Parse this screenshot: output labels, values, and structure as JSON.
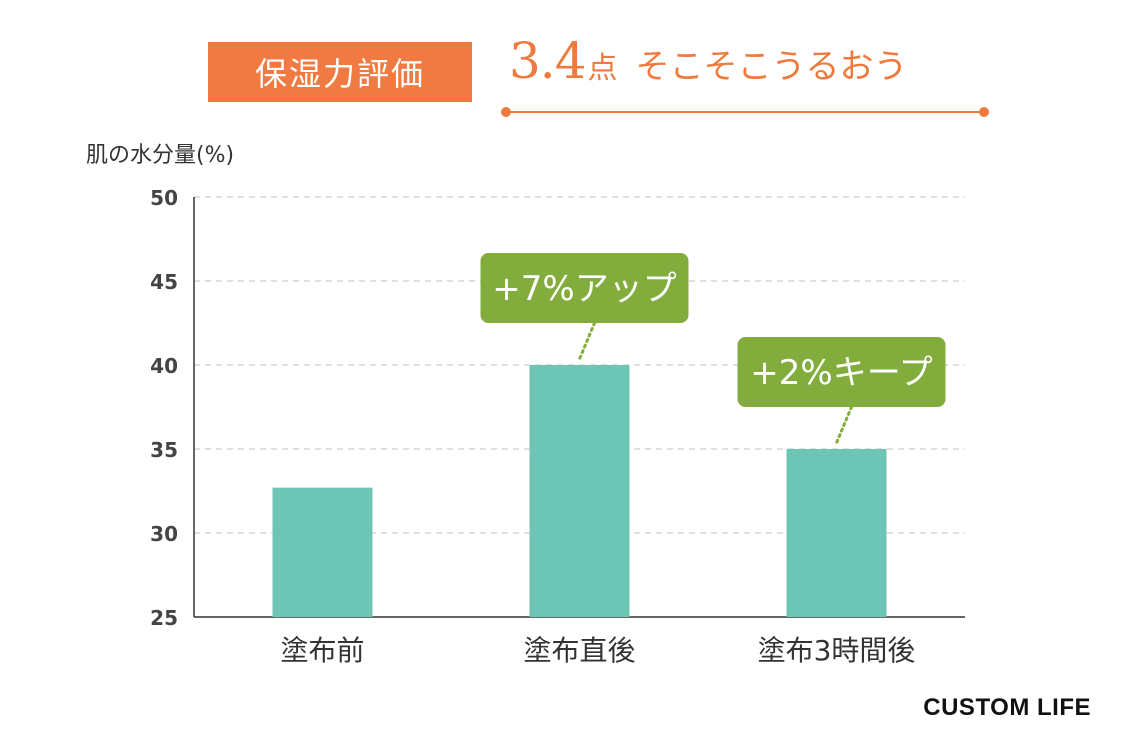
{
  "header": {
    "badge_label": "保湿力評価",
    "score_value": "3.4",
    "score_unit": "点",
    "score_desc": "そこそこうるおう"
  },
  "brand": "CUSTOM LIFE",
  "colors": {
    "accent": "#f07a41",
    "bar": "#6cc5b5",
    "callout": "#82ad3c",
    "grid": "#cccccc"
  },
  "chart_data": {
    "type": "bar",
    "title": "保湿力評価",
    "ylabel": "肌の水分量(%)",
    "xlabel": "",
    "categories": [
      "塗布前",
      "塗布直後",
      "塗布3時間後"
    ],
    "values": [
      32.7,
      40.0,
      35.0
    ],
    "ylim": [
      25,
      50
    ],
    "yticks": [
      25,
      30,
      35,
      40,
      45,
      50
    ],
    "grid": true,
    "annotations": [
      {
        "category_index": 1,
        "text": "+7%アップ"
      },
      {
        "category_index": 2,
        "text": "+2%キープ"
      }
    ]
  }
}
